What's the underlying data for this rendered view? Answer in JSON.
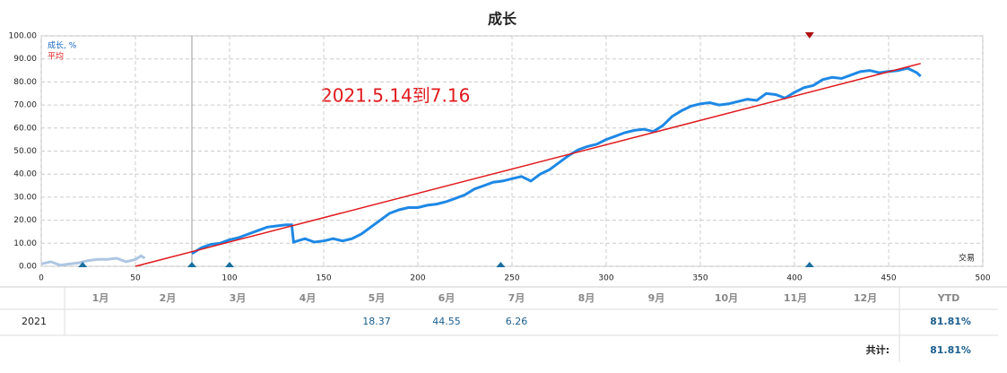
{
  "chart_data": {
    "type": "line",
    "title": "成长",
    "annotation": "2021.5.14到7.16",
    "x_label": "交易",
    "xlim": [
      0,
      500
    ],
    "xticks": [
      0,
      50,
      100,
      150,
      200,
      250,
      300,
      350,
      400,
      450,
      500
    ],
    "ylim": [
      0,
      100
    ],
    "yticks": [
      {
        "value": 0,
        "label": "0.00"
      },
      {
        "value": 10,
        "label": "10.00"
      },
      {
        "value": 20,
        "label": "20.00"
      },
      {
        "value": 30,
        "label": "30.00"
      },
      {
        "value": 40,
        "label": "40.00"
      },
      {
        "value": 50,
        "label": "50.00"
      },
      {
        "value": 60,
        "label": "60.00"
      },
      {
        "value": 70,
        "label": "70.00"
      },
      {
        "value": 80,
        "label": "80.00"
      },
      {
        "value": 90,
        "label": "90.00"
      },
      {
        "value": 100,
        "label": "100.00"
      }
    ],
    "grid": true,
    "legend": "top-left",
    "cursor_x": 80,
    "trade_markers_x": [
      22,
      80,
      100,
      244,
      408
    ],
    "trade_marker_color": "#1a6f9e",
    "top_markers_x": [
      408
    ],
    "top_marker_color": "#b01010",
    "series": [
      {
        "name": "成长, %",
        "color": "#1565c0",
        "segment_colors": [
          "#aec6e2",
          "#1e88e5"
        ],
        "x": [
          0,
          5,
          10,
          15,
          20,
          25,
          30,
          35,
          40,
          45,
          50,
          53,
          55,
          67,
          80,
          85,
          90,
          95,
          100,
          105,
          110,
          115,
          120,
          125,
          130,
          133,
          134,
          140,
          145,
          150,
          155,
          160,
          165,
          170,
          175,
          180,
          185,
          190,
          195,
          200,
          205,
          210,
          215,
          220,
          225,
          230,
          235,
          240,
          245,
          250,
          255,
          260,
          265,
          270,
          275,
          280,
          285,
          290,
          295,
          300,
          305,
          310,
          315,
          320,
          325,
          330,
          335,
          340,
          345,
          350,
          355,
          360,
          365,
          370,
          375,
          380,
          385,
          390,
          395,
          400,
          405,
          410,
          415,
          420,
          425,
          430,
          435,
          440,
          445,
          450,
          455,
          460,
          465,
          467
        ],
        "values": [
          1,
          2,
          0.5,
          1,
          1.5,
          2.5,
          3,
          3,
          3.5,
          2,
          3,
          4.5,
          3.5,
          null,
          5.5,
          8,
          9.5,
          10,
          11.5,
          12.5,
          14,
          15.5,
          17,
          17.5,
          18,
          18,
          10.5,
          12,
          10.5,
          11,
          12,
          11,
          12,
          14,
          17,
          20,
          23,
          24.5,
          25.5,
          25.5,
          26.5,
          27,
          28,
          29.5,
          31,
          33.5,
          35,
          36.5,
          37,
          38,
          39,
          37,
          40,
          42,
          45,
          48,
          50.5,
          52,
          53,
          55,
          56.5,
          58,
          59,
          59.5,
          58.5,
          61,
          65,
          67.5,
          69.5,
          70.5,
          71,
          70,
          70.5,
          71.5,
          72.5,
          72,
          75,
          74.5,
          73,
          75.5,
          77.5,
          78.5,
          81,
          82,
          81.5,
          83,
          84.5,
          85,
          84,
          84.5,
          85,
          86,
          84,
          82.5
        ]
      },
      {
        "name": "平均",
        "color": "#e0191c",
        "x": [
          50,
          467
        ],
        "values": [
          0,
          88
        ]
      }
    ]
  },
  "table": {
    "columns": [
      "1月",
      "2月",
      "3月",
      "4月",
      "5月",
      "6月",
      "7月",
      "8月",
      "9月",
      "10月",
      "11月",
      "12月"
    ],
    "ytd_header": "YTD",
    "rows": [
      {
        "year": "2021",
        "values": [
          null,
          null,
          null,
          null,
          18.37,
          44.55,
          6.26,
          null,
          null,
          null,
          null,
          null
        ],
        "ytd": "81.81%"
      }
    ],
    "total_label": "共计:",
    "total": "81.81%"
  }
}
